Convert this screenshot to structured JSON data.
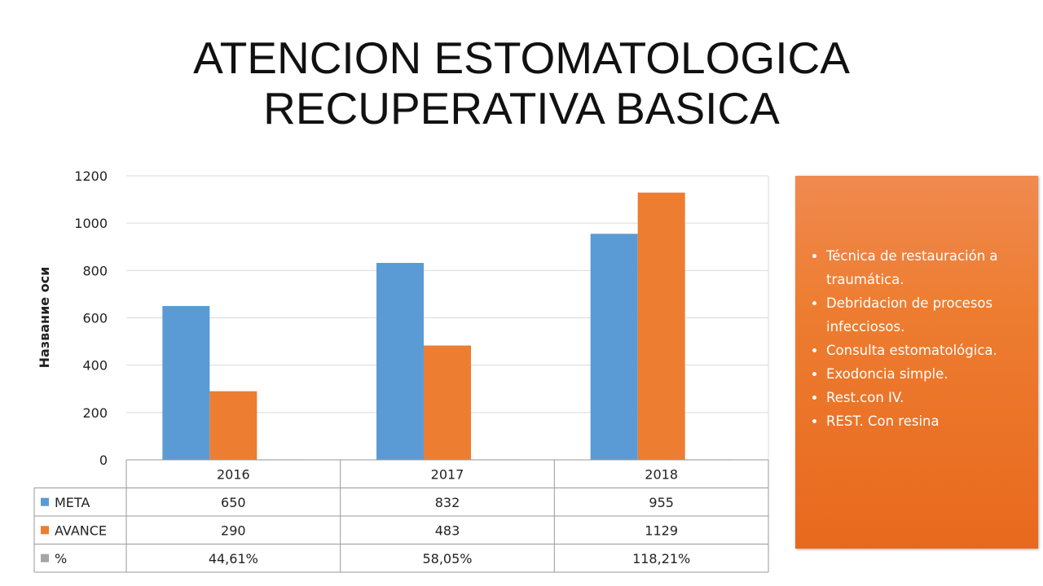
{
  "slide": {
    "title_line1": "ATENCION ESTOMATOLOGICA",
    "title_line2": "RECUPERATIVA BASICA"
  },
  "chart_data": {
    "type": "bar",
    "title": "",
    "xlabel": "",
    "ylabel": "Название оси",
    "ylim": [
      0,
      1200
    ],
    "yticks": [
      0,
      200,
      400,
      600,
      800,
      1000,
      1200
    ],
    "grid": true,
    "legend": "data-table",
    "categories": [
      "2016",
      "2017",
      "2018"
    ],
    "series": [
      {
        "name": "META",
        "values": [
          650,
          832,
          955
        ],
        "color": "#5b9bd5",
        "labels": [
          "650",
          "832",
          "955"
        ]
      },
      {
        "name": "AVANCE",
        "values": [
          290,
          483,
          1129
        ],
        "color": "#ed7d31",
        "labels": [
          "290",
          "483",
          "1129"
        ]
      },
      {
        "name": "%",
        "values": [
          0.4461,
          0.5805,
          1.1821
        ],
        "color": "#a5a5a5",
        "labels": [
          "44,61%",
          "58,05%",
          "118,21%"
        ]
      }
    ]
  },
  "info_box": {
    "items": [
      "Técnica de restauración a traumática.",
      "Debridacion de procesos infecciosos.",
      "Consulta estomatológica.",
      "Exodoncia simple.",
      "Rest.con IV.",
      "REST. Con resina"
    ]
  }
}
